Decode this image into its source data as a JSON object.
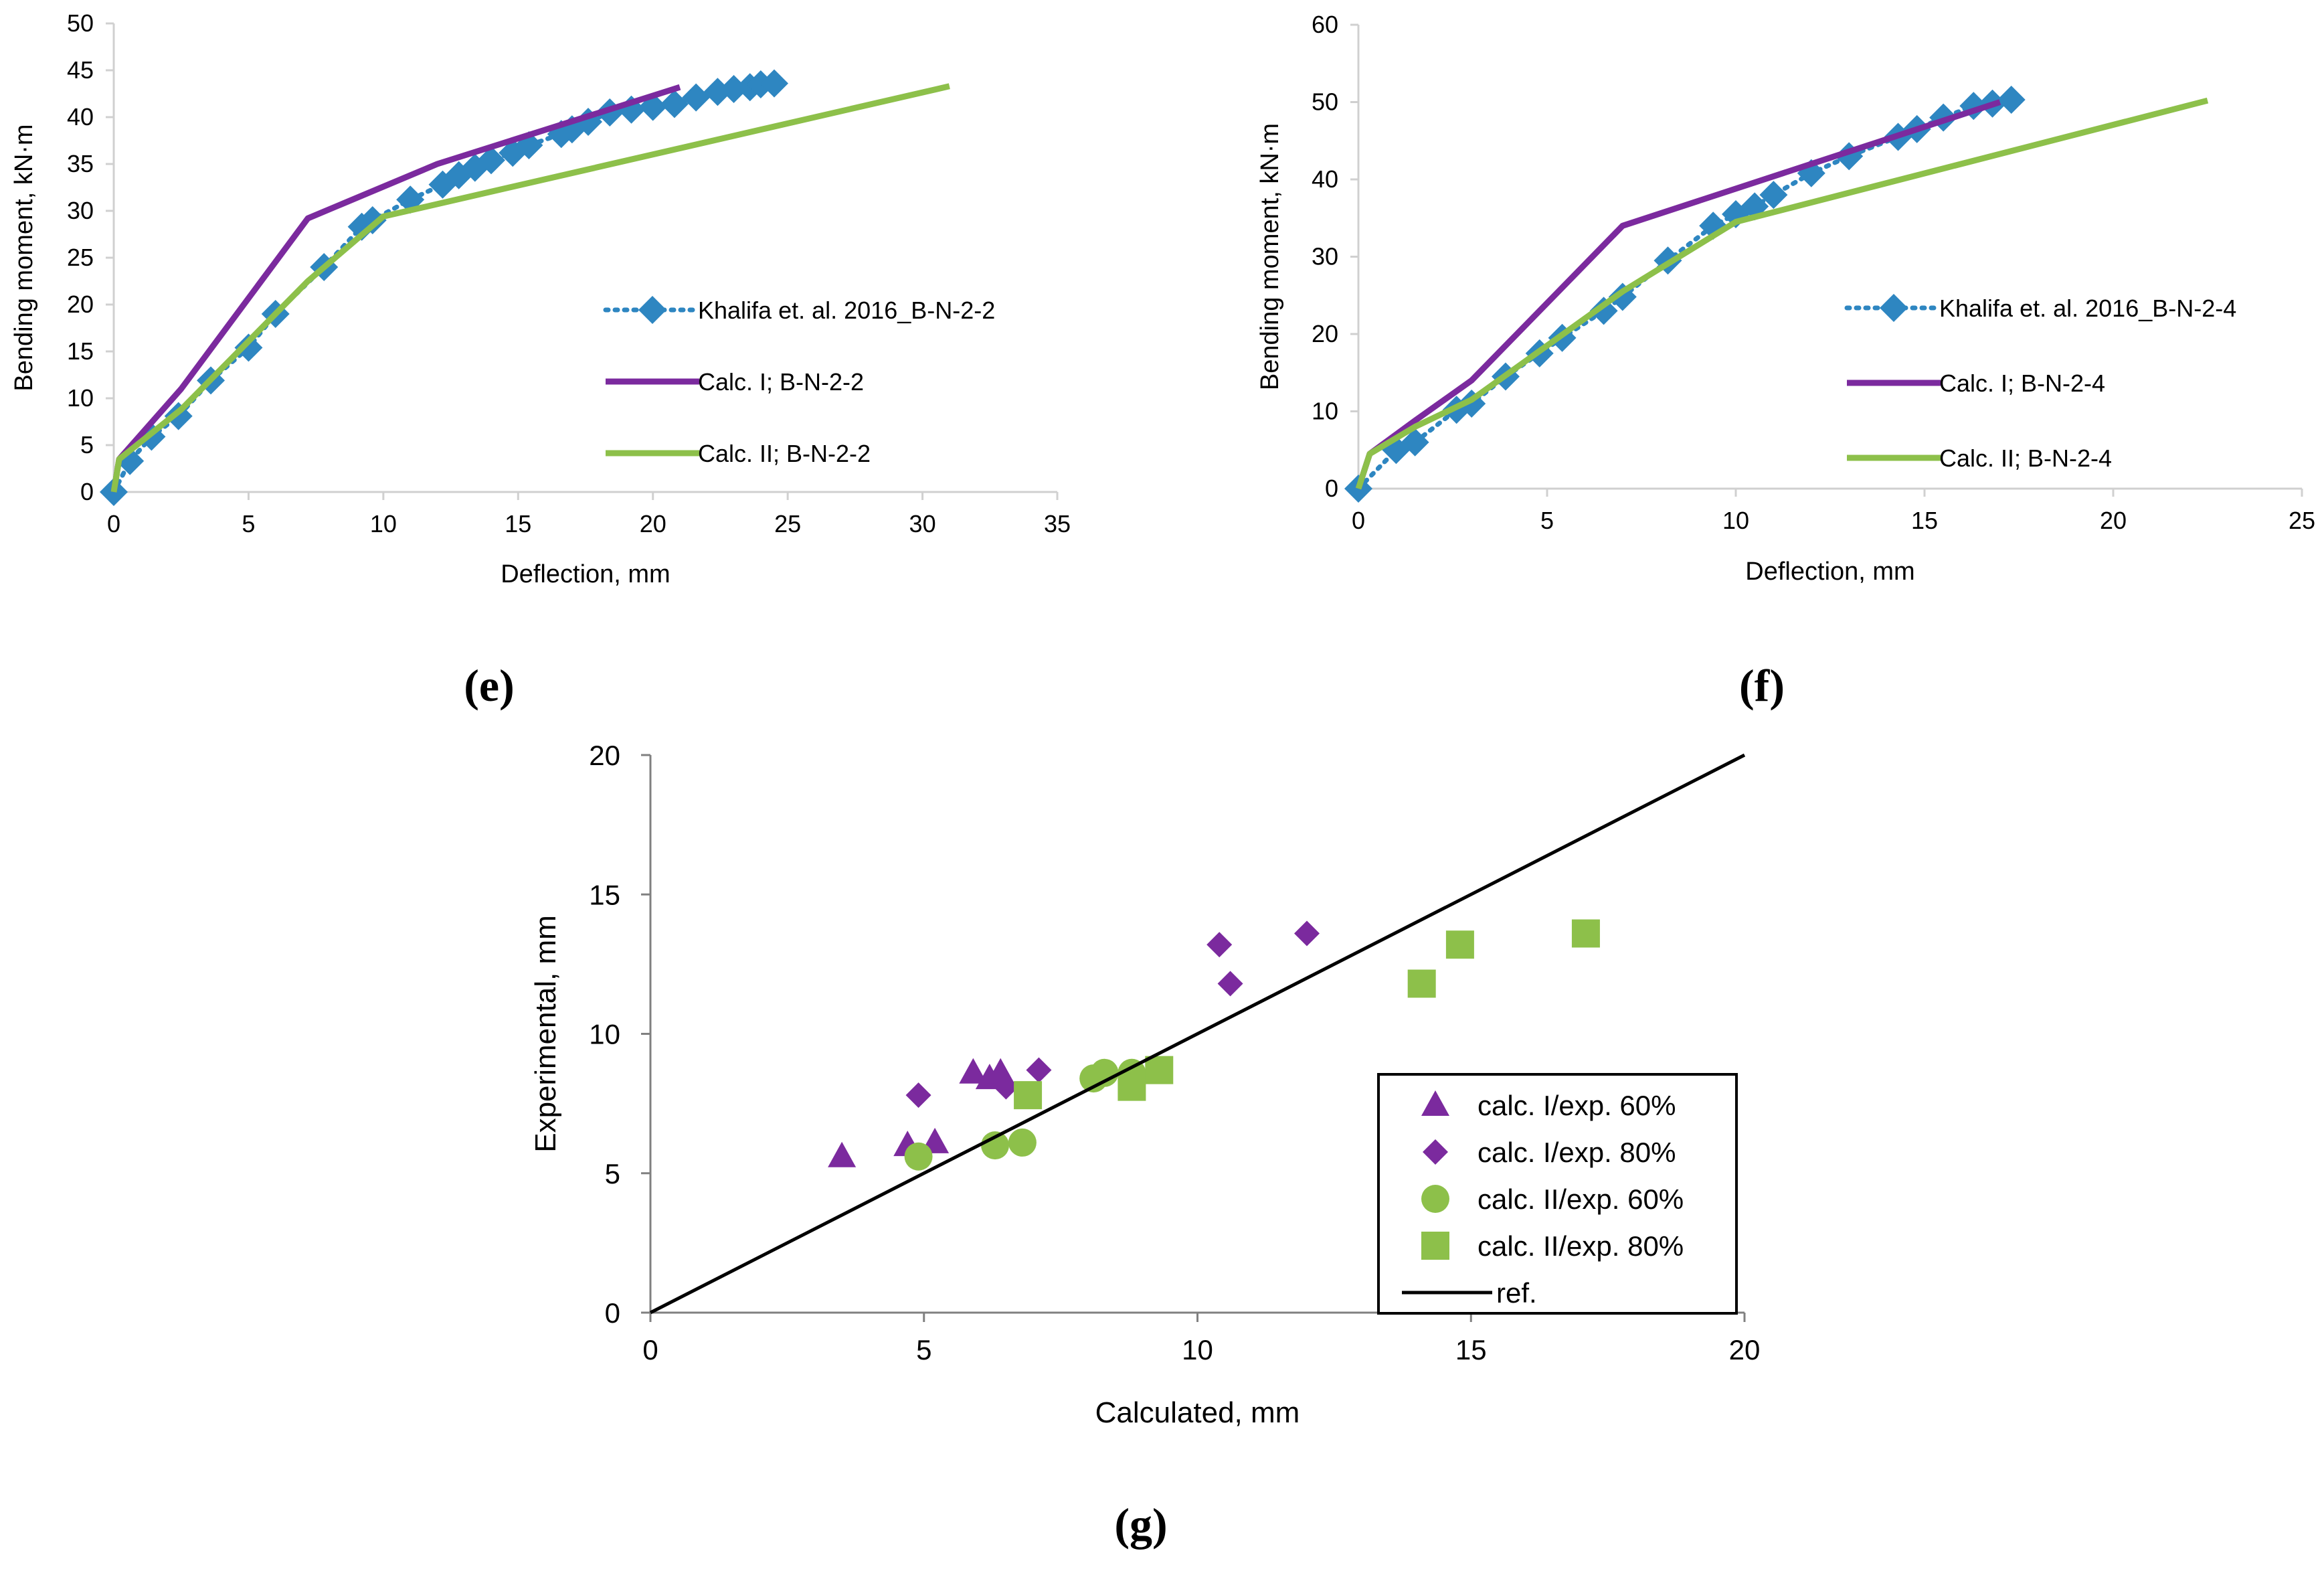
{
  "panels": {
    "e": "(e)",
    "f": "(f)",
    "g": "(g)"
  },
  "colors": {
    "experimental": "#2e86c1",
    "calc_I": "#7b2a9e",
    "calc_II": "#8dc04a",
    "ref": "#000000"
  },
  "chart_data": [
    {
      "id": "e",
      "type": "line",
      "xlabel": "Deflection, mm",
      "ylabel": "Bending moment, kN·m",
      "xlim": [
        0,
        35
      ],
      "ylim": [
        0,
        50
      ],
      "xticks": [
        0,
        5,
        10,
        15,
        20,
        25,
        30,
        35
      ],
      "yticks": [
        0,
        5,
        10,
        15,
        20,
        25,
        30,
        35,
        40,
        45,
        50
      ],
      "legend_position": "right",
      "series": [
        {
          "name": "Khalifa et. al. 2016_B-N-2-2",
          "style": "dotted-diamond",
          "color": "#2e86c1",
          "x": [
            0,
            0.6,
            1.4,
            2.4,
            3.6,
            5.0,
            6.0,
            7.8,
            9.2,
            9.6,
            11.0,
            12.2,
            12.8,
            13.4,
            14.0,
            14.8,
            15.4,
            16.6,
            17.0,
            17.6,
            18.4,
            19.2,
            20.0,
            20.8,
            21.6,
            22.4,
            23.0,
            23.6,
            24.0,
            24.5
          ],
          "y": [
            0,
            3.3,
            5.9,
            8.1,
            11.9,
            15.4,
            19.0,
            24.0,
            28.3,
            29.0,
            31.2,
            32.8,
            33.8,
            34.6,
            35.4,
            36.2,
            37.0,
            38.2,
            38.7,
            39.5,
            40.5,
            40.8,
            41.1,
            41.4,
            42.1,
            42.7,
            43.0,
            43.2,
            43.5,
            43.6
          ]
        },
        {
          "name": "Calc. I; B-N-2-2",
          "style": "line",
          "color": "#7b2a9e",
          "x": [
            0,
            0.2,
            2.5,
            7.2,
            12.0,
            21.0
          ],
          "y": [
            0,
            3.5,
            11.0,
            29.2,
            35.0,
            43.2
          ]
        },
        {
          "name": "Calc. II; B-N-2-2",
          "style": "line",
          "color": "#8dc04a",
          "x": [
            0,
            0.2,
            2.5,
            7.2,
            10.0,
            31.0
          ],
          "y": [
            0,
            3.5,
            8.8,
            22.5,
            29.4,
            43.3
          ]
        }
      ]
    },
    {
      "id": "f",
      "type": "line",
      "xlabel": "Deflection, mm",
      "ylabel": "Bending moment, kN·m",
      "xlim": [
        0,
        25
      ],
      "ylim": [
        0,
        60
      ],
      "xticks": [
        0,
        5,
        10,
        15,
        20,
        25
      ],
      "yticks": [
        0,
        10,
        20,
        30,
        40,
        50,
        60
      ],
      "legend_position": "right",
      "series": [
        {
          "name": "Khalifa et. al. 2016_B-N-2-4",
          "style": "dotted-diamond",
          "color": "#2e86c1",
          "x": [
            0,
            1.0,
            1.5,
            2.6,
            3.0,
            3.9,
            4.8,
            5.4,
            6.5,
            7.0,
            8.2,
            9.4,
            10.0,
            10.5,
            11.0,
            12.0,
            13.0,
            14.3,
            14.8,
            15.5,
            16.3,
            16.8,
            17.3
          ],
          "y": [
            0,
            5.0,
            6.0,
            10.2,
            11.0,
            14.5,
            17.5,
            19.5,
            23.0,
            24.8,
            29.5,
            34.0,
            35.5,
            36.5,
            38.0,
            40.8,
            43.0,
            45.5,
            46.5,
            48.0,
            49.5,
            49.8,
            50.3
          ]
        },
        {
          "name": "Calc. I; B-N-2-4",
          "style": "line",
          "color": "#7b2a9e",
          "x": [
            0,
            0.3,
            1.5,
            3.0,
            7.0,
            17.0
          ],
          "y": [
            0,
            4.5,
            8.8,
            14.0,
            34.0,
            50.0
          ]
        },
        {
          "name": "Calc. II; B-N-2-4",
          "style": "line",
          "color": "#8dc04a",
          "x": [
            0,
            0.3,
            1.5,
            3.0,
            7.0,
            10.0,
            22.5
          ],
          "y": [
            0,
            4.5,
            8.0,
            11.5,
            25.5,
            34.5,
            50.2
          ]
        }
      ]
    },
    {
      "id": "g",
      "type": "scatter",
      "xlabel": "Calculated, mm",
      "ylabel": "Experimental, mm",
      "xlim": [
        0,
        20
      ],
      "ylim": [
        0,
        20
      ],
      "xticks": [
        0,
        5,
        10,
        15,
        20
      ],
      "yticks": [
        0,
        5,
        10,
        15,
        20
      ],
      "legend_position": "bottom-right",
      "series": [
        {
          "name": "calc. I/exp. 60%",
          "marker": "triangle",
          "color": "#7b2a9e",
          "x": [
            3.5,
            4.7,
            5.2,
            5.9,
            6.2,
            6.4
          ],
          "y": [
            5.6,
            6.0,
            6.1,
            8.6,
            8.4,
            8.6
          ]
        },
        {
          "name": "calc. I/exp. 80%",
          "marker": "diamond",
          "color": "#7b2a9e",
          "x": [
            4.9,
            6.5,
            7.1,
            10.4,
            10.6,
            12.0
          ],
          "y": [
            7.8,
            8.1,
            8.7,
            13.2,
            11.8,
            13.6
          ]
        },
        {
          "name": "calc. II/exp. 60%",
          "marker": "circle",
          "color": "#8dc04a",
          "x": [
            4.9,
            6.3,
            6.8,
            8.1,
            8.3,
            8.8
          ],
          "y": [
            5.6,
            6.0,
            6.1,
            8.4,
            8.6,
            8.6
          ]
        },
        {
          "name": "calc. II/exp. 80%",
          "marker": "square",
          "color": "#8dc04a",
          "x": [
            6.9,
            8.8,
            9.3,
            14.1,
            14.8,
            17.1
          ],
          "y": [
            7.8,
            8.1,
            8.7,
            11.8,
            13.2,
            13.6
          ]
        },
        {
          "name": "ref.",
          "marker": "line",
          "color": "#000000",
          "x": [
            0,
            20
          ],
          "y": [
            0,
            20
          ]
        }
      ]
    }
  ]
}
